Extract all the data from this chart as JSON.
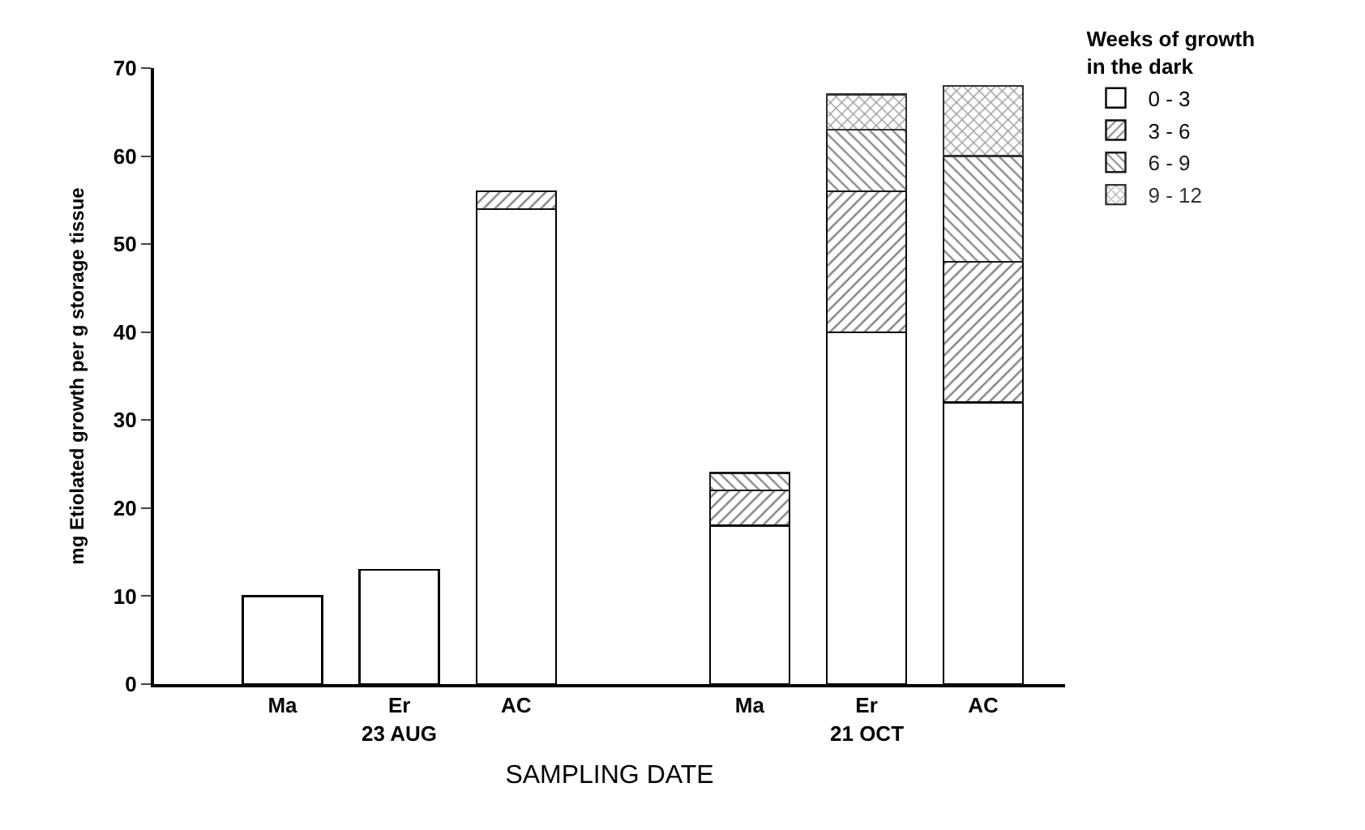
{
  "chart_data": {
    "type": "bar",
    "stacked": true,
    "xlabel": "SAMPLING DATE",
    "ylabel": "mg Etiolated growth per g storage tissue",
    "legend_title": "Weeks of growth\nin the dark",
    "categories": [
      "Ma",
      "Er",
      "AC",
      null,
      "Ma",
      "Er",
      "AC"
    ],
    "annotations": [
      "23 AUG",
      "21 OCT"
    ],
    "series": [
      {
        "name": "0 - 3",
        "color": "#ffffff",
        "values": [
          10,
          13,
          54,
          null,
          18,
          40,
          32
        ]
      },
      {
        "name": "3 - 6",
        "color": "#0d0d0d",
        "values": [
          null,
          null,
          2,
          null,
          4,
          16,
          16
        ]
      },
      {
        "name": "6 - 9",
        "color": "#1a1a1a",
        "values": [
          null,
          null,
          null,
          null,
          2,
          7,
          12
        ]
      },
      {
        "name": "9 - 12",
        "color": "#333333",
        "values": [
          null,
          null,
          null,
          null,
          null,
          4,
          8
        ]
      }
    ],
    "ylim": [
      0,
      70
    ],
    "yticks": [
      0,
      10,
      20,
      30,
      40,
      50,
      60,
      70
    ],
    "legend": "top right"
  }
}
